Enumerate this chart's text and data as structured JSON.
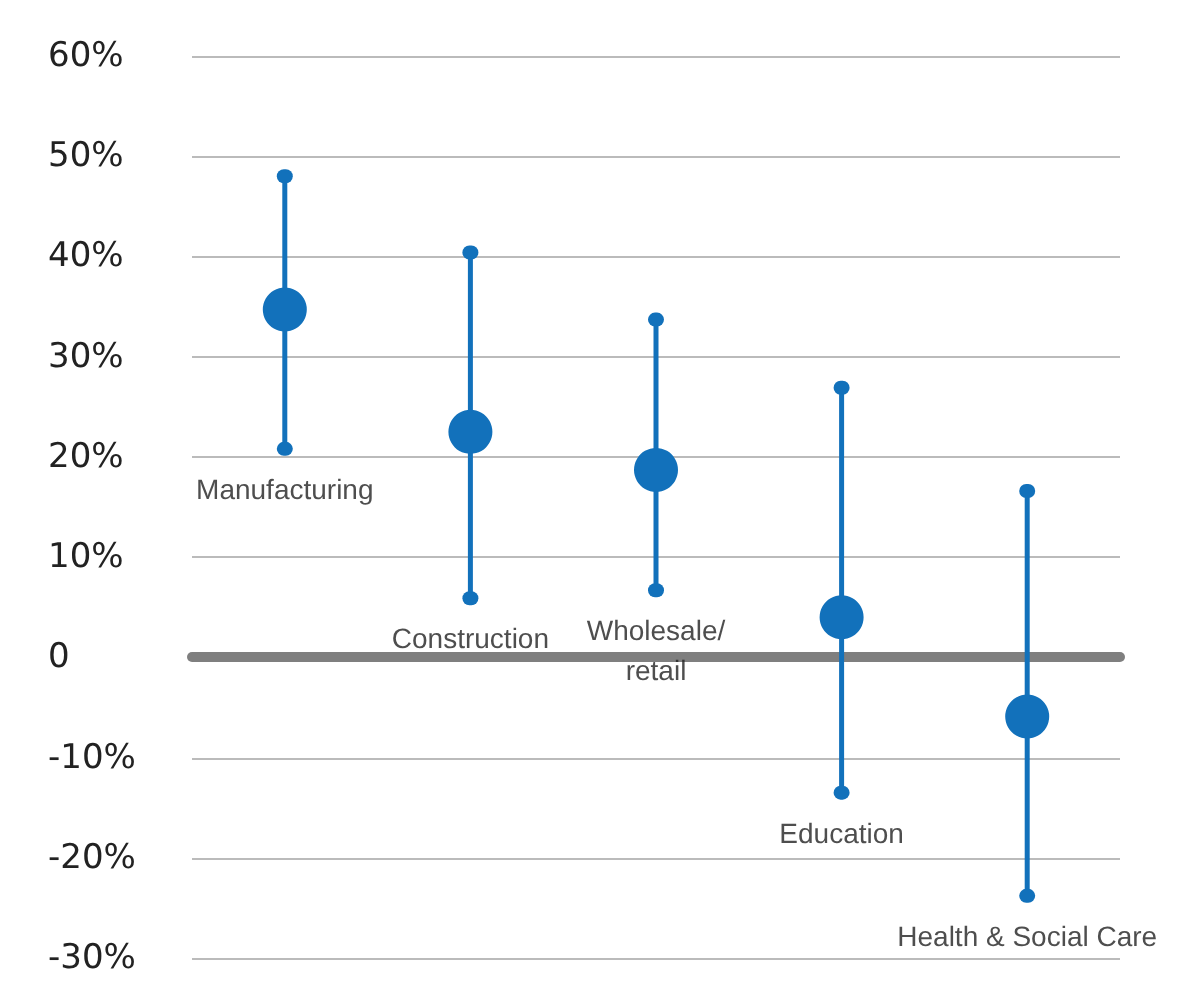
{
  "chart_data": {
    "type": "scatter",
    "categories": [
      "Manufacturing",
      "Construction",
      "Wholesale/\nretail",
      "Education",
      "Health & Social Care"
    ],
    "values": [
      34.7,
      22.5,
      18.7,
      4,
      -5.9
    ],
    "errors": [
      [
        20.8,
        48
      ],
      [
        5.9,
        40.4
      ],
      [
        6.7,
        33.7
      ],
      [
        -13.5,
        26.9
      ],
      [
        -23.8,
        16.6
      ]
    ],
    "color": "#1271bb",
    "marker": "circle",
    "ylim": [
      -30,
      60
    ],
    "yticks": [
      {
        "value": -30,
        "label": "-30%"
      },
      {
        "value": -20,
        "label": "-20%"
      },
      {
        "value": -10,
        "label": "-10%"
      },
      0,
      {
        "value": 10,
        "label": "10%"
      },
      {
        "value": 20,
        "label": "20%"
      },
      {
        "value": 30,
        "label": "30%"
      },
      {
        "value": 40,
        "label": "40%"
      },
      {
        "value": 50,
        "label": "50%"
      },
      {
        "value": 60,
        "label": "60%"
      }
    ],
    "grid": "y",
    "tick_labels": "y"
  }
}
